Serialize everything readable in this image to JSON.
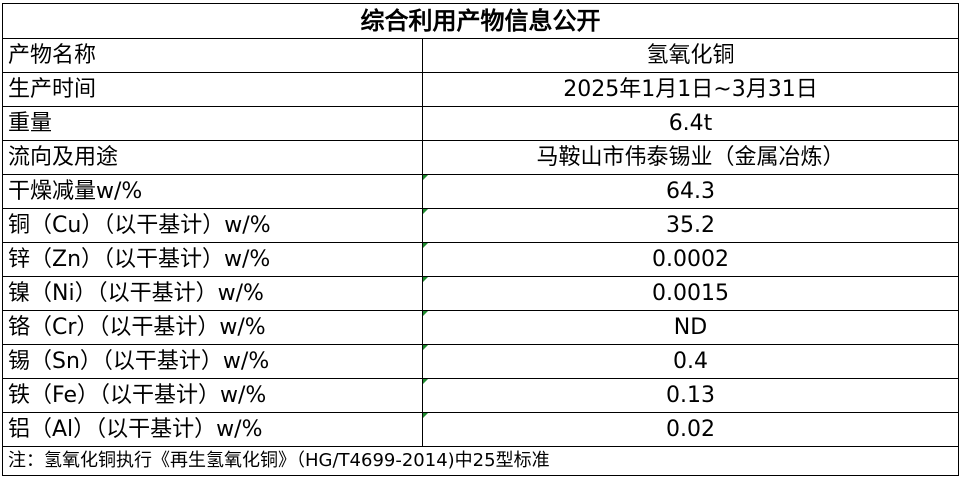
{
  "title": "综合利用产物信息公开",
  "rows": [
    {
      "label": "产物名称",
      "value": "氢氧化铜",
      "flag": false
    },
    {
      "label": "生产时间",
      "value": "2025年1月1日~3月31日",
      "flag": false
    },
    {
      "label": "重量",
      "value": "6.4t",
      "flag": false
    },
    {
      "label": "流向及用途",
      "value": "马鞍山市伟泰锡业（金属冶炼）",
      "flag": false
    },
    {
      "label": "干燥减量w/%",
      "value": "64.3",
      "flag": true
    },
    {
      "label": "铜（Cu）（以干基计）w/%",
      "value": "35.2",
      "flag": true
    },
    {
      "label": "锌（Zn）（以干基计）w/%",
      "value": "0.0002",
      "flag": true
    },
    {
      "label": "镍（Ni）（以干基计）w/%",
      "value": "0.0015",
      "flag": true
    },
    {
      "label": "铬（Cr）（以干基计）w/%",
      "value": "ND",
      "flag": true
    },
    {
      "label": "锡（Sn）（以干基计）w/%",
      "value": "0.4",
      "flag": true
    },
    {
      "label": "铁（Fe）（以干基计）w/%",
      "value": "0.13",
      "flag": true
    },
    {
      "label": "铝（Al）（以干基计）w/%",
      "value": "0.02",
      "flag": true
    }
  ],
  "note": "注：氢氧化铜执行《再生氢氧化铜》（HG/T4699-2014)中25型标准",
  "colors": {
    "flag": "#1e8a2e",
    "border": "#000000"
  }
}
